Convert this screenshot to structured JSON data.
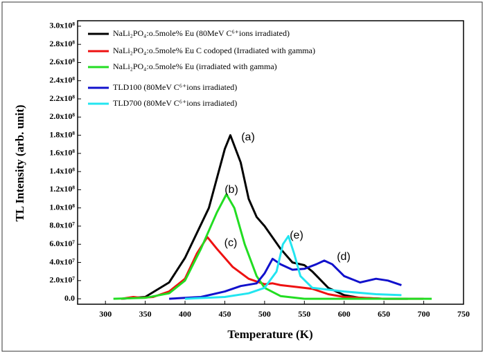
{
  "chart_data": {
    "type": "line",
    "x_label": "Temperature (K)",
    "y_label": "TL Intensity (arb. unit)",
    "xlim": [
      265,
      750
    ],
    "xticks": [
      300,
      350,
      400,
      450,
      500,
      550,
      600,
      650,
      700,
      750
    ],
    "ylim": [
      -6000000,
      306000000
    ],
    "yticks": [
      {
        "value": 0,
        "label": "0.0"
      },
      {
        "value": 20000000,
        "label": "2.0x10⁷"
      },
      {
        "value": 40000000,
        "label": "4.0x10⁷"
      },
      {
        "value": 60000000,
        "label": "6.0x10⁷"
      },
      {
        "value": 80000000,
        "label": "8.0x10⁷"
      },
      {
        "value": 100000000,
        "label": "1.0x10⁸"
      },
      {
        "value": 120000000,
        "label": "1.2x10⁸"
      },
      {
        "value": 140000000,
        "label": "1.4x10⁸"
      },
      {
        "value": 160000000,
        "label": "1.6x10⁸"
      },
      {
        "value": 180000000,
        "label": "1.8x10⁸"
      },
      {
        "value": 200000000,
        "label": "2.0x10⁸"
      },
      {
        "value": 220000000,
        "label": "2.2x10⁸"
      },
      {
        "value": 240000000,
        "label": "2.4x10⁸"
      },
      {
        "value": 260000000,
        "label": "2.6x10⁸"
      },
      {
        "value": 280000000,
        "label": "2.8x10⁸"
      },
      {
        "value": 300000000,
        "label": "3.0x10⁸"
      }
    ],
    "legend": "upper left",
    "annotations": [
      "(a)",
      "(b)",
      "(c)",
      "(d)",
      "(e)"
    ],
    "series": [
      {
        "name": "NaLi₂PO₄:o.5mole% Eu (80MeV C⁶⁺ions irradiated)",
        "color": "#000000",
        "x": [
          320,
          350,
          380,
          400,
          430,
          450,
          457,
          470,
          480,
          490,
          500,
          520,
          535,
          550,
          560,
          580,
          600,
          620,
          650,
          680
        ],
        "values": [
          0,
          2000000,
          18000000,
          45000000,
          100000000,
          165000000,
          180000000,
          150000000,
          110000000,
          90000000,
          80000000,
          55000000,
          40000000,
          37000000,
          30000000,
          12000000,
          4000000,
          1000000,
          0,
          0
        ]
      },
      {
        "name": "NaLi₂PO₄:o.5mole% Eu C codoped (Irradiated with gamma)",
        "color": "#ee1111",
        "x": [
          320,
          335,
          345,
          360,
          380,
          400,
          415,
          428,
          440,
          460,
          480,
          500,
          510,
          520,
          540,
          560,
          580,
          600,
          650,
          700
        ],
        "values": [
          0,
          2000000,
          1000000,
          2000000,
          8000000,
          22000000,
          50000000,
          68000000,
          55000000,
          35000000,
          22000000,
          16000000,
          17000000,
          15000000,
          13000000,
          11000000,
          5000000,
          2000000,
          0,
          0
        ]
      },
      {
        "name": "NaLi₂PO₄:o.5mole% Eu (irradiated with gamma)",
        "color": "#22dd22",
        "x": [
          310,
          350,
          380,
          400,
          420,
          440,
          452,
          462,
          475,
          490,
          500,
          520,
          550,
          700,
          710
        ],
        "values": [
          0,
          1000000,
          6000000,
          20000000,
          55000000,
          95000000,
          115000000,
          100000000,
          60000000,
          25000000,
          12000000,
          3000000,
          0,
          0,
          0
        ]
      },
      {
        "name": "TLD100 (80MeV C⁶⁺ions irradiated)",
        "color": "#1111cc",
        "x": [
          380,
          420,
          450,
          470,
          490,
          500,
          510,
          520,
          535,
          550,
          565,
          575,
          585,
          600,
          620,
          640,
          655,
          672
        ],
        "values": [
          0,
          2000000,
          8000000,
          14000000,
          17000000,
          28000000,
          44000000,
          38000000,
          32000000,
          33000000,
          38000000,
          42000000,
          38000000,
          25000000,
          18000000,
          22000000,
          20000000,
          15000000
        ]
      },
      {
        "name": "TLD700 (80MeV C⁶⁺ions irradiated)",
        "color": "#22e5f0",
        "x": [
          400,
          450,
          480,
          500,
          515,
          523,
          530,
          537,
          545,
          560,
          600,
          640,
          672
        ],
        "values": [
          0,
          2000000,
          6000000,
          12000000,
          30000000,
          60000000,
          69000000,
          50000000,
          25000000,
          12000000,
          8000000,
          5000000,
          4000000
        ]
      }
    ]
  }
}
